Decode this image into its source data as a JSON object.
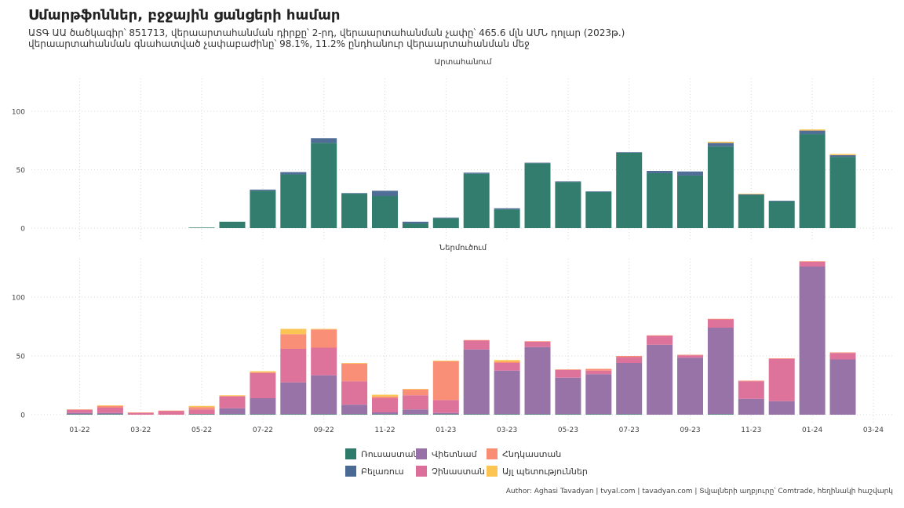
{
  "title": "Սմարթֆոններ, բջջային ցանցերի համար",
  "subtitle_line1": "ԱՏԳ ԱԱ ծածկագիր՝ 851713, վերաարտահանման դիրքը՝ 2-րդ, վերաարտահանման չափը՝ 465.6 մլն ԱՄՆ դոլար (2023թ.)",
  "subtitle_line2": "վերաարտահանման գնահատված չափաբաժինը՝ 98.1%, 11.2% ընդհանուր վերաարտահանման մեջ",
  "caption": "Author: Aghasi Tavadyan   |   tvyal.com   |   tavadyan.com   |   Տվյալների աղբյուրը՝ Comtrade, հեղինակի հաշվարկ",
  "colors": {
    "Ռուսաստան": "#2e7a6b",
    "Բելառուս": "#4b6a93",
    "Վիետնամ": "#9670a6",
    "Չինաստան": "#dc6f99",
    "Հնդկաստան": "#f98d74",
    "Այլ պետություններ": "#fbc453"
  },
  "legend": [
    "Ռուսաստան",
    "Բելառուս",
    "Վիետնամ",
    "Չինաստան",
    "Հնդկաստան",
    "Այլ պետություններ"
  ],
  "chart_data": {
    "type": "bar",
    "stacked": true,
    "x": [
      "01-22",
      "02-22",
      "03-22",
      "04-22",
      "05-22",
      "06-22",
      "07-22",
      "08-22",
      "09-22",
      "10-22",
      "11-22",
      "12-22",
      "01-23",
      "02-23",
      "03-23",
      "04-23",
      "05-23",
      "06-23",
      "07-23",
      "08-23",
      "09-23",
      "10-23",
      "11-23",
      "12-23",
      "01-24",
      "02-24"
    ],
    "x_tick_labels": [
      "01-22",
      "03-22",
      "05-22",
      "07-22",
      "09-22",
      "11-22",
      "01-23",
      "03-23",
      "05-23",
      "07-23",
      "09-23",
      "11-23",
      "01-24",
      "03-24"
    ],
    "ylim": [
      0,
      130
    ],
    "y_ticks": [
      0,
      50,
      100
    ],
    "grid": true,
    "legend_position": "bottom",
    "panels": [
      {
        "strip": "Արտահանում",
        "series": [
          {
            "name": "Ռուսաստան",
            "values": [
              0,
              0,
              0,
              0,
              0.5,
              5.5,
              32,
              46,
              73,
              29.5,
              27.5,
              4,
              8.5,
              46.5,
              16,
              55.5,
              39.5,
              31,
              64.5,
              47,
              45,
              70,
              28.5,
              23,
              80.5,
              61
            ]
          },
          {
            "name": "Բելառուս",
            "values": [
              0,
              0,
              0,
              0,
              0,
              0,
              1,
              2,
              4,
              0.5,
              4.5,
              1.5,
              0.5,
              1,
              1,
              0.5,
              0.5,
              0.5,
              0.5,
              2,
              3.5,
              3,
              0.5,
              0.5,
              3,
              1.5
            ]
          },
          {
            "name": "Վիետնամ",
            "values": [
              0,
              0,
              0,
              0,
              0,
              0,
              0,
              0,
              0,
              0,
              0,
              0,
              0,
              0,
              0,
              0,
              0,
              0,
              0,
              0,
              0,
              0,
              0,
              0,
              0,
              0
            ]
          },
          {
            "name": "Չինաստան",
            "values": [
              0,
              0,
              0,
              0,
              0,
              0,
              0,
              0,
              0,
              0,
              0,
              0,
              0,
              0,
              0,
              0,
              0,
              0,
              0,
              0,
              0,
              0,
              0,
              0,
              0,
              0
            ]
          },
          {
            "name": "Հնդկաստան",
            "values": [
              0,
              0,
              0,
              0,
              0,
              0,
              0,
              0,
              0,
              0,
              0,
              0,
              0,
              0,
              0,
              0,
              0,
              0,
              0,
              0,
              0,
              0,
              0,
              0,
              0,
              0
            ]
          },
          {
            "name": "Այլ պետություններ",
            "values": [
              0,
              0,
              0,
              0,
              0,
              0,
              0,
              0,
              0,
              0,
              0,
              0,
              0,
              0,
              0,
              0,
              0,
              0,
              0,
              0,
              0,
              1,
              0.5,
              0,
              1,
              1
            ]
          }
        ]
      },
      {
        "strip": "Ներմուծում",
        "series": [
          {
            "name": "Ռուսաստան",
            "values": [
              0.5,
              0.5,
              0,
              0,
              0.5,
              0.5,
              0.5,
              0.5,
              0.5,
              0.5,
              0.5,
              0.5,
              0.5,
              0.5,
              0.5,
              0.5,
              0.5,
              0.5,
              0.5,
              0,
              0,
              0.5,
              0,
              0,
              0,
              0
            ]
          },
          {
            "name": "Բելառուս",
            "values": [
              0,
              0,
              0,
              0,
              0,
              0,
              0,
              0,
              0,
              0,
              0,
              0,
              0,
              0,
              0,
              0,
              0,
              0,
              0,
              0,
              0,
              0,
              0,
              0,
              0,
              0
            ]
          },
          {
            "name": "Վիետնամ",
            "values": [
              1,
              1,
              0,
              0,
              0,
              5,
              13.5,
              27,
              33,
              8,
              1.5,
              4,
              1,
              55,
              37,
              57,
              31,
              34,
              43.5,
              59.5,
              48.5,
              73.5,
              13.5,
              11.5,
              126,
              47
            ]
          },
          {
            "name": "Չինաստան",
            "values": [
              2.5,
              4.5,
              1.5,
              3,
              4,
              10,
              21.5,
              28.5,
              23.5,
              20,
              12,
              12,
              11,
              7.5,
              6.5,
              4.5,
              6.5,
              3,
              5,
              7.5,
              2,
              7,
              15,
              36,
              4,
              5.5
            ]
          },
          {
            "name": "Հնդկաստան",
            "values": [
              0.5,
              1.5,
              0.5,
              0.5,
              2,
              0.5,
              0.5,
              12.5,
              15.5,
              15,
              1.5,
              5,
              33,
              0.5,
              1,
              0.5,
              0.5,
              1.5,
              1,
              0.5,
              0.5,
              0.5,
              0.5,
              0.5,
              0.5,
              0.5
            ]
          },
          {
            "name": "Այլ պետություններ",
            "values": [
              0,
              0.5,
              0,
              0,
              1,
              0.5,
              1,
              4.5,
              0.5,
              0.5,
              1.5,
              0.5,
              0.5,
              0,
              1.5,
              0,
              0,
              0,
              0,
              0,
              0,
              0,
              0,
              0,
              0,
              0
            ]
          }
        ]
      }
    ]
  }
}
